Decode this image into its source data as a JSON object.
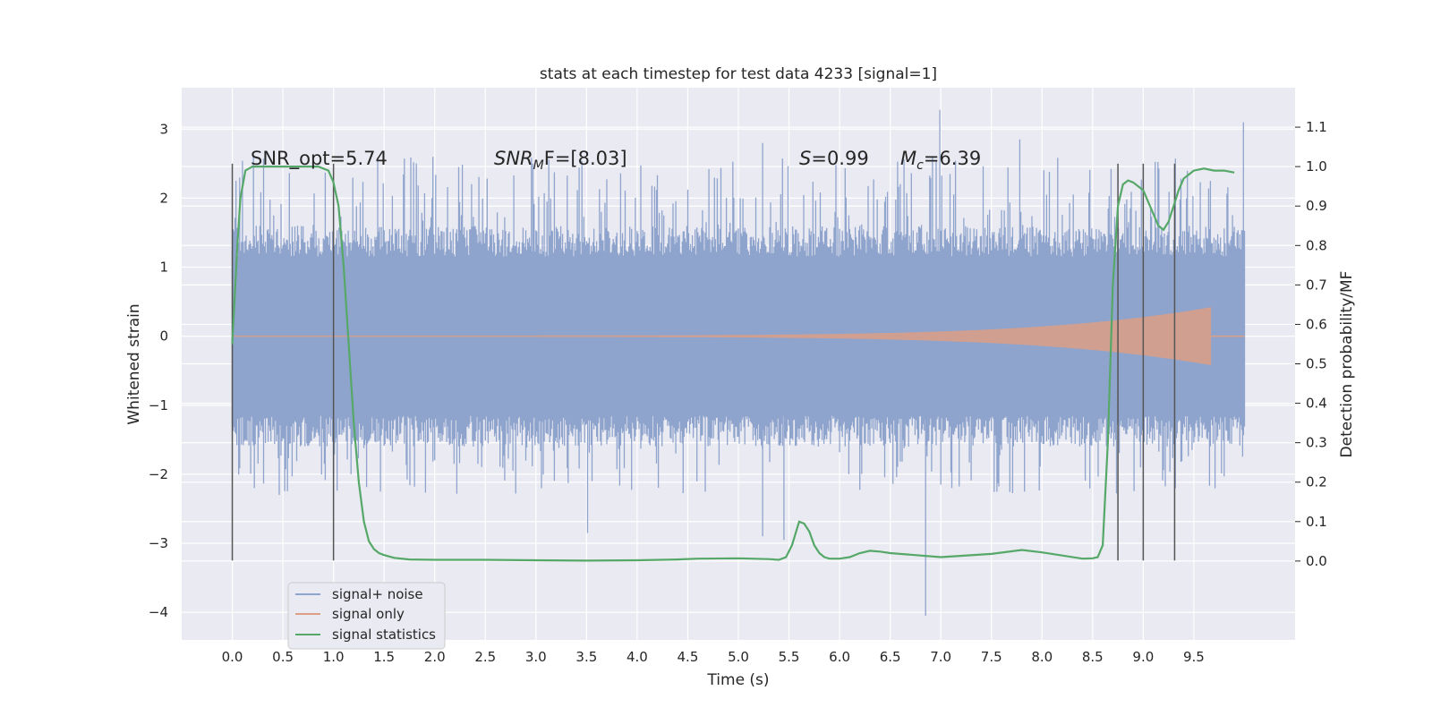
{
  "chart_data": {
    "type": "line",
    "title": "stats at each timestep for test data 4233 [signal=1]",
    "xlabel": "Time (s)",
    "ylabel": "Whitened strain",
    "y2label": "Detection probability/MF",
    "xlim": [
      -0.5,
      10.5
    ],
    "ylim": [
      -4.4,
      3.6
    ],
    "y2lim": [
      -0.2,
      1.2
    ],
    "xticks": [
      0.0,
      0.5,
      1.0,
      1.5,
      2.0,
      2.5,
      3.0,
      3.5,
      4.0,
      4.5,
      5.0,
      5.5,
      6.0,
      6.5,
      7.0,
      7.5,
      8.0,
      8.5,
      9.0,
      9.5
    ],
    "xtick_labels": [
      "0.0",
      "0.5",
      "1.0",
      "1.5",
      "2.0",
      "2.5",
      "3.0",
      "3.5",
      "4.0",
      "4.5",
      "5.0",
      "5.5",
      "6.0",
      "6.5",
      "7.0",
      "7.5",
      "8.0",
      "8.5",
      "9.0",
      "9.5"
    ],
    "yticks": [
      -4,
      -3,
      -2,
      -1,
      0,
      1,
      2,
      3
    ],
    "ytick_labels": [
      "−4",
      "−3",
      "−2",
      "−1",
      "0",
      "1",
      "2",
      "3"
    ],
    "y2ticks": [
      0.0,
      0.1,
      0.2,
      0.3,
      0.4,
      0.5,
      0.6,
      0.7,
      0.8,
      0.9,
      1.0,
      1.1
    ],
    "y2tick_labels": [
      "0.0",
      "0.1",
      "0.2",
      "0.3",
      "0.4",
      "0.5",
      "0.6",
      "0.7",
      "0.8",
      "0.9",
      "1.0",
      "1.1"
    ],
    "grid": true,
    "legend_position": "lower-left",
    "legend": [
      {
        "label": "signal+ noise",
        "color": "#8fa4cc"
      },
      {
        "label": "signal only",
        "color": "#dd9f85"
      },
      {
        "label": "signal statistics",
        "color": "#55a868"
      }
    ],
    "annotations": {
      "snr_opt": "SNR_opt=5.74",
      "snr_mf_sym": "SNR",
      "snr_mf_sub": "M",
      "snr_mf_rest": "F=[8.03]",
      "s_sym": "S",
      "s_val": "=0.99",
      "mc_sym": "M",
      "mc_sub": "c",
      "mc_val": "=6.39"
    },
    "series": [
      {
        "name": "signal+ noise",
        "color": "#8fa4cc",
        "t_start": 0.0,
        "t_end": 10.0,
        "envelope_typical": 1.6,
        "envelope_peak": 2.6,
        "extremes": [
          [
            6.85,
            -4.05
          ],
          [
            6.99,
            3.28
          ],
          [
            9.99,
            3.1
          ],
          [
            5.24,
            2.8
          ],
          [
            2.97,
            2.5
          ],
          [
            3.51,
            -2.85
          ],
          [
            5.45,
            -2.95
          ],
          [
            5.24,
            -2.9
          ],
          [
            7.78,
            2.85
          ]
        ]
      },
      {
        "name": "signal only",
        "color": "#dd9f85",
        "t_start": 0.0,
        "t_end": 9.67,
        "amplitude_start": 0.01,
        "amplitude_end": 0.42
      },
      {
        "name": "signal statistics",
        "color": "#55a868",
        "axis": "secondary",
        "x": [
          0.0,
          0.05,
          0.08,
          0.13,
          0.2,
          0.3,
          0.5,
          0.7,
          0.85,
          0.95,
          1.0,
          1.05,
          1.1,
          1.15,
          1.2,
          1.25,
          1.3,
          1.35,
          1.4,
          1.45,
          1.5,
          1.6,
          1.75,
          2.0,
          2.5,
          3.0,
          3.5,
          4.0,
          4.4,
          4.6,
          5.0,
          5.3,
          5.4,
          5.47,
          5.53,
          5.6,
          5.65,
          5.7,
          5.75,
          5.8,
          5.85,
          5.9,
          6.0,
          6.1,
          6.2,
          6.3,
          6.4,
          6.5,
          7.0,
          7.5,
          7.8,
          8.0,
          8.4,
          8.5,
          8.55,
          8.6,
          8.65,
          8.7,
          8.75,
          8.8,
          8.85,
          8.9,
          9.0,
          9.05,
          9.1,
          9.15,
          9.2,
          9.25,
          9.3,
          9.35,
          9.4,
          9.45,
          9.5,
          9.6,
          9.7,
          9.8,
          9.9
        ],
        "y": [
          0.55,
          0.8,
          0.92,
          0.99,
          1.0,
          1.0,
          1.0,
          1.0,
          1.0,
          0.99,
          0.96,
          0.9,
          0.75,
          0.55,
          0.35,
          0.2,
          0.1,
          0.05,
          0.03,
          0.02,
          0.015,
          0.008,
          0.004,
          0.003,
          0.003,
          0.002,
          0.001,
          0.002,
          0.004,
          0.006,
          0.007,
          0.005,
          0.003,
          0.01,
          0.04,
          0.1,
          0.095,
          0.075,
          0.04,
          0.02,
          0.01,
          0.006,
          0.006,
          0.01,
          0.02,
          0.026,
          0.024,
          0.02,
          0.01,
          0.018,
          0.028,
          0.022,
          0.006,
          0.007,
          0.01,
          0.04,
          0.3,
          0.7,
          0.9,
          0.955,
          0.965,
          0.96,
          0.94,
          0.91,
          0.88,
          0.85,
          0.84,
          0.86,
          0.9,
          0.94,
          0.97,
          0.98,
          0.99,
          0.995,
          0.99,
          0.99,
          0.985
        ]
      }
    ],
    "vlines": [
      {
        "x": 0.0,
        "ymin": -3.25,
        "ymax": 2.5
      },
      {
        "x": 1.0,
        "ymin": -3.25,
        "ymax": 2.5
      },
      {
        "x": 8.75,
        "ymin": -3.25,
        "ymax": 2.5
      },
      {
        "x": 9.0,
        "ymin": -3.25,
        "ymax": 2.5
      },
      {
        "x": 9.31,
        "ymin": -3.25,
        "ymax": 2.5
      }
    ]
  }
}
